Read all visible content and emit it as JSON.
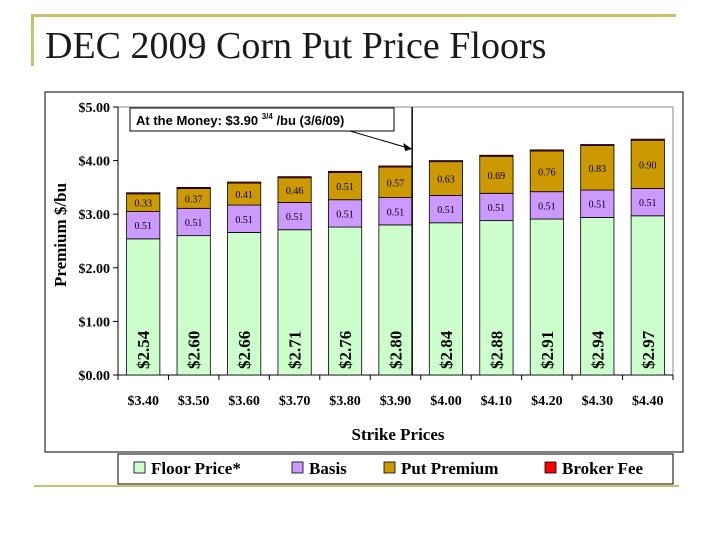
{
  "slide": {
    "title": "DEC 2009 Corn Put Price Floors"
  },
  "chart_data": {
    "type": "bar",
    "stacked": true,
    "ylabel": "Premium $/bu",
    "xlabel": "Strike Prices",
    "ylim": [
      0,
      5
    ],
    "yticks": [
      "$0.00",
      "$1.00",
      "$2.00",
      "$3.00",
      "$4.00",
      "$5.00"
    ],
    "categories": [
      "$3.40",
      "$3.50",
      "$3.60",
      "$3.70",
      "$3.80",
      "$3.90",
      "$4.00",
      "$4.10",
      "$4.20",
      "$4.30",
      "$4.40"
    ],
    "series": [
      {
        "name": "Floor Price*",
        "color": "#ccffcc",
        "values": [
          2.54,
          2.6,
          2.66,
          2.71,
          2.76,
          2.8,
          2.84,
          2.88,
          2.91,
          2.94,
          2.97
        ],
        "labels": [
          "$2.54",
          "$2.60",
          "$2.66",
          "$2.71",
          "$2.76",
          "$2.80",
          "$2.84",
          "$2.88",
          "$2.91",
          "$2.94",
          "$2.97"
        ]
      },
      {
        "name": "Basis",
        "color": "#cc99ff",
        "values": [
          0.51,
          0.51,
          0.51,
          0.51,
          0.51,
          0.51,
          0.51,
          0.51,
          0.51,
          0.51,
          0.51
        ],
        "labels": [
          "0.51",
          "0.51",
          "0.51",
          "0.51",
          "0.51",
          "0.51",
          "0.51",
          "0.51",
          "0.51",
          "0.51",
          "0.51"
        ]
      },
      {
        "name": "Put Premium",
        "color": "#cc9900",
        "values": [
          0.33,
          0.37,
          0.41,
          0.46,
          0.51,
          0.57,
          0.63,
          0.69,
          0.76,
          0.83,
          0.9
        ],
        "labels": [
          "0.33",
          "0.37",
          "0.41",
          "0.46",
          "0.51",
          "0.57",
          "0.63",
          "0.69",
          "0.76",
          "0.83",
          "0.90"
        ]
      },
      {
        "name": "Broker Fee",
        "color": "#ff0000",
        "values": [
          0.02,
          0.02,
          0.02,
          0.02,
          0.02,
          0.02,
          0.02,
          0.02,
          0.02,
          0.02,
          0.02
        ],
        "labels": []
      }
    ],
    "annotation": {
      "text": "At the Money: $3.90",
      "superscript": "3/4",
      "suffix": "/bu (3/6/09)",
      "category_index": 5
    },
    "legend_position": "bottom",
    "grid": false
  }
}
